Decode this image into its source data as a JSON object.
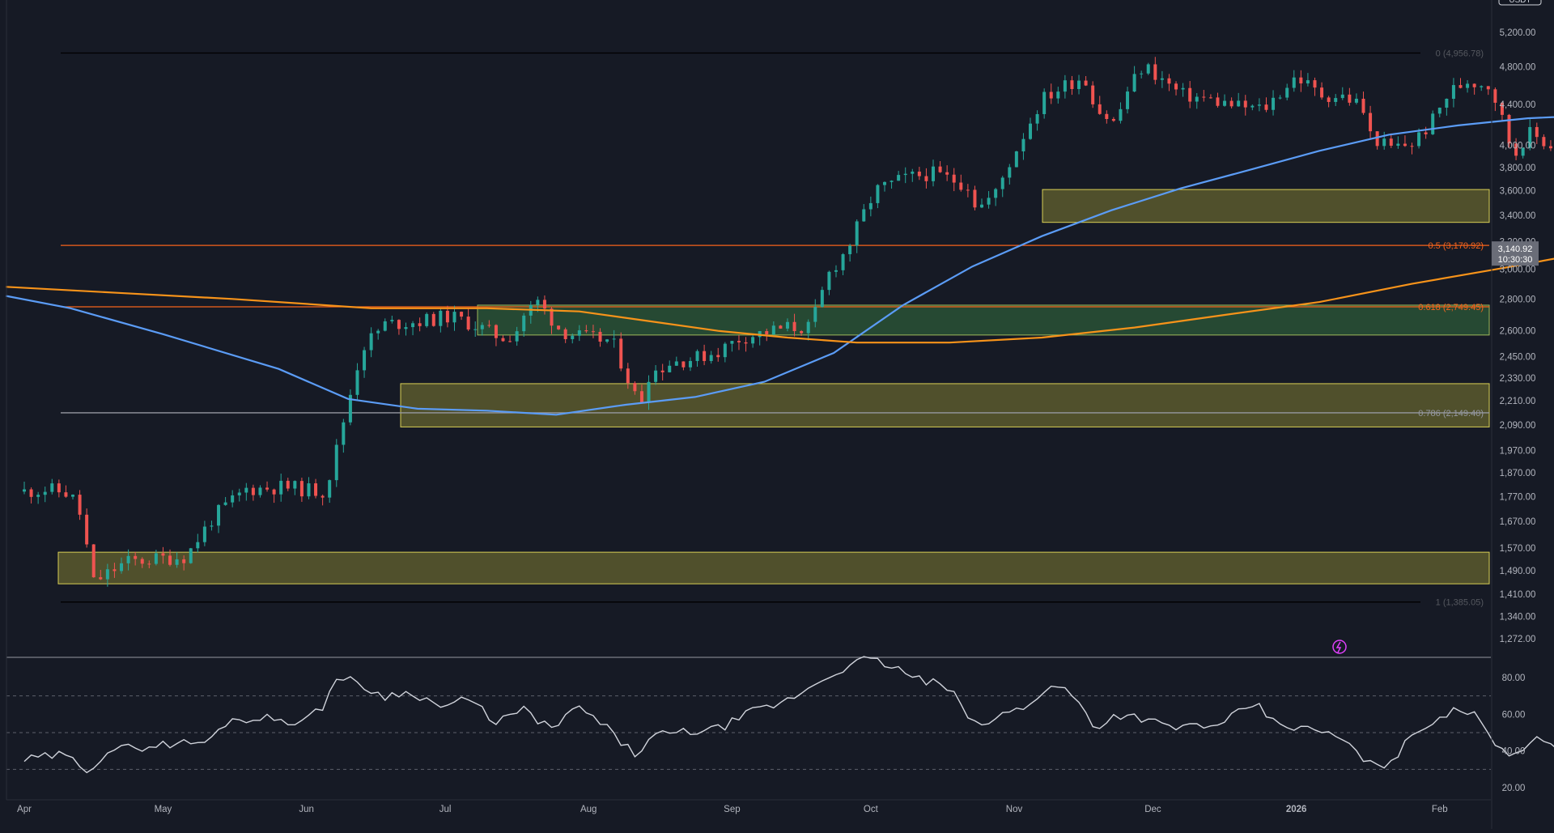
{
  "chart_data": {
    "type": "candlestick",
    "symbol_badge": "USDT",
    "last_price": {
      "label": "3,140.92",
      "countdown": "10:30:30"
    },
    "price_axis": {
      "ticks": [
        "5,200.00",
        "4,800.00",
        "4,400.00",
        "4,000.00",
        "3,800.00",
        "3,600.00",
        "3,400.00",
        "3,200.00",
        "3,000.00",
        "2,800.00",
        "2,600.00",
        "2,450.00",
        "2,330.00",
        "2,210.00",
        "2,090.00",
        "1,970.00",
        "1,870.00",
        "1,770.00",
        "1,670.00",
        "1,570.00",
        "1,490.00",
        "1,410.00",
        "1,340.00",
        "1,272.00"
      ]
    },
    "rsi_axis": {
      "ticks": [
        "80.00",
        "60.00",
        "40.00",
        "20.00"
      ],
      "bands": [
        70,
        50,
        30
      ]
    },
    "time_axis": [
      "Apr",
      "May",
      "Jun",
      "Jul",
      "Aug",
      "Sep",
      "Oct",
      "Nov",
      "Dec",
      "2026",
      "Feb"
    ],
    "fib_levels": [
      {
        "label": "0 (4,956.78)",
        "value": 4956.78,
        "color": "#000000"
      },
      {
        "label": "0.5 (3,170.92)",
        "value": 3170.92,
        "color": "#f7631b"
      },
      {
        "label": "0.618 (2,749.45)",
        "value": 2749.45,
        "color": "#f7631b"
      },
      {
        "label": "0.786 (2,149.40)",
        "value": 2149.4,
        "color": "#9598a1"
      },
      {
        "label": "1 (1,385.05)",
        "value": 1385.05,
        "color": "#000000"
      }
    ],
    "zones": [
      {
        "name": "supply-zone",
        "top": 3610,
        "bottom": 3345,
        "color": "yellow"
      },
      {
        "name": "demand-zone-green",
        "top": 2760,
        "bottom": 2575,
        "color": "green"
      },
      {
        "name": "demand-zone-mid",
        "top": 2300,
        "bottom": 2080,
        "color": "yellow"
      },
      {
        "name": "demand-zone-low",
        "top": 1555,
        "bottom": 1445,
        "color": "yellow"
      }
    ],
    "ma_fast_color": "#5b9cf6",
    "ma_slow_color": "#f7931a",
    "up_color": "#26a69a",
    "down_color": "#ef5350",
    "rsi_color": "#d1d4dc"
  }
}
